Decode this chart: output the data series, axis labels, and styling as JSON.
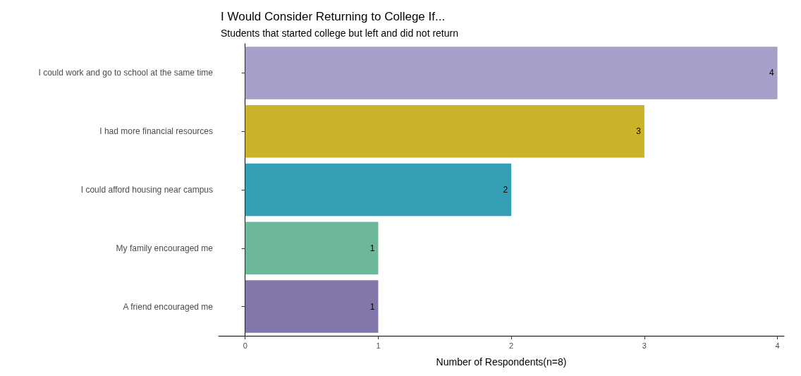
{
  "chart_data": {
    "type": "bar",
    "orientation": "horizontal",
    "title": "I Would Consider Returning to College If...",
    "subtitle": "Students that started college but left and did not return",
    "xlabel": "Number of Respondents(n=8)",
    "categories": [
      "I could work and go to school at the same time",
      "I had more financial resources",
      "I could afford housing near campus",
      "My family encouraged me",
      "A friend encouraged me"
    ],
    "values": [
      4,
      3,
      2,
      1,
      1
    ],
    "colors": [
      "#a59fc9",
      "#cbb22a",
      "#33a1b3",
      "#6db89b",
      "#8376ab"
    ],
    "xlim": [
      -0.2,
      4.05
    ],
    "xticks": [
      0,
      1,
      2,
      3,
      4
    ],
    "data_labels": true
  }
}
